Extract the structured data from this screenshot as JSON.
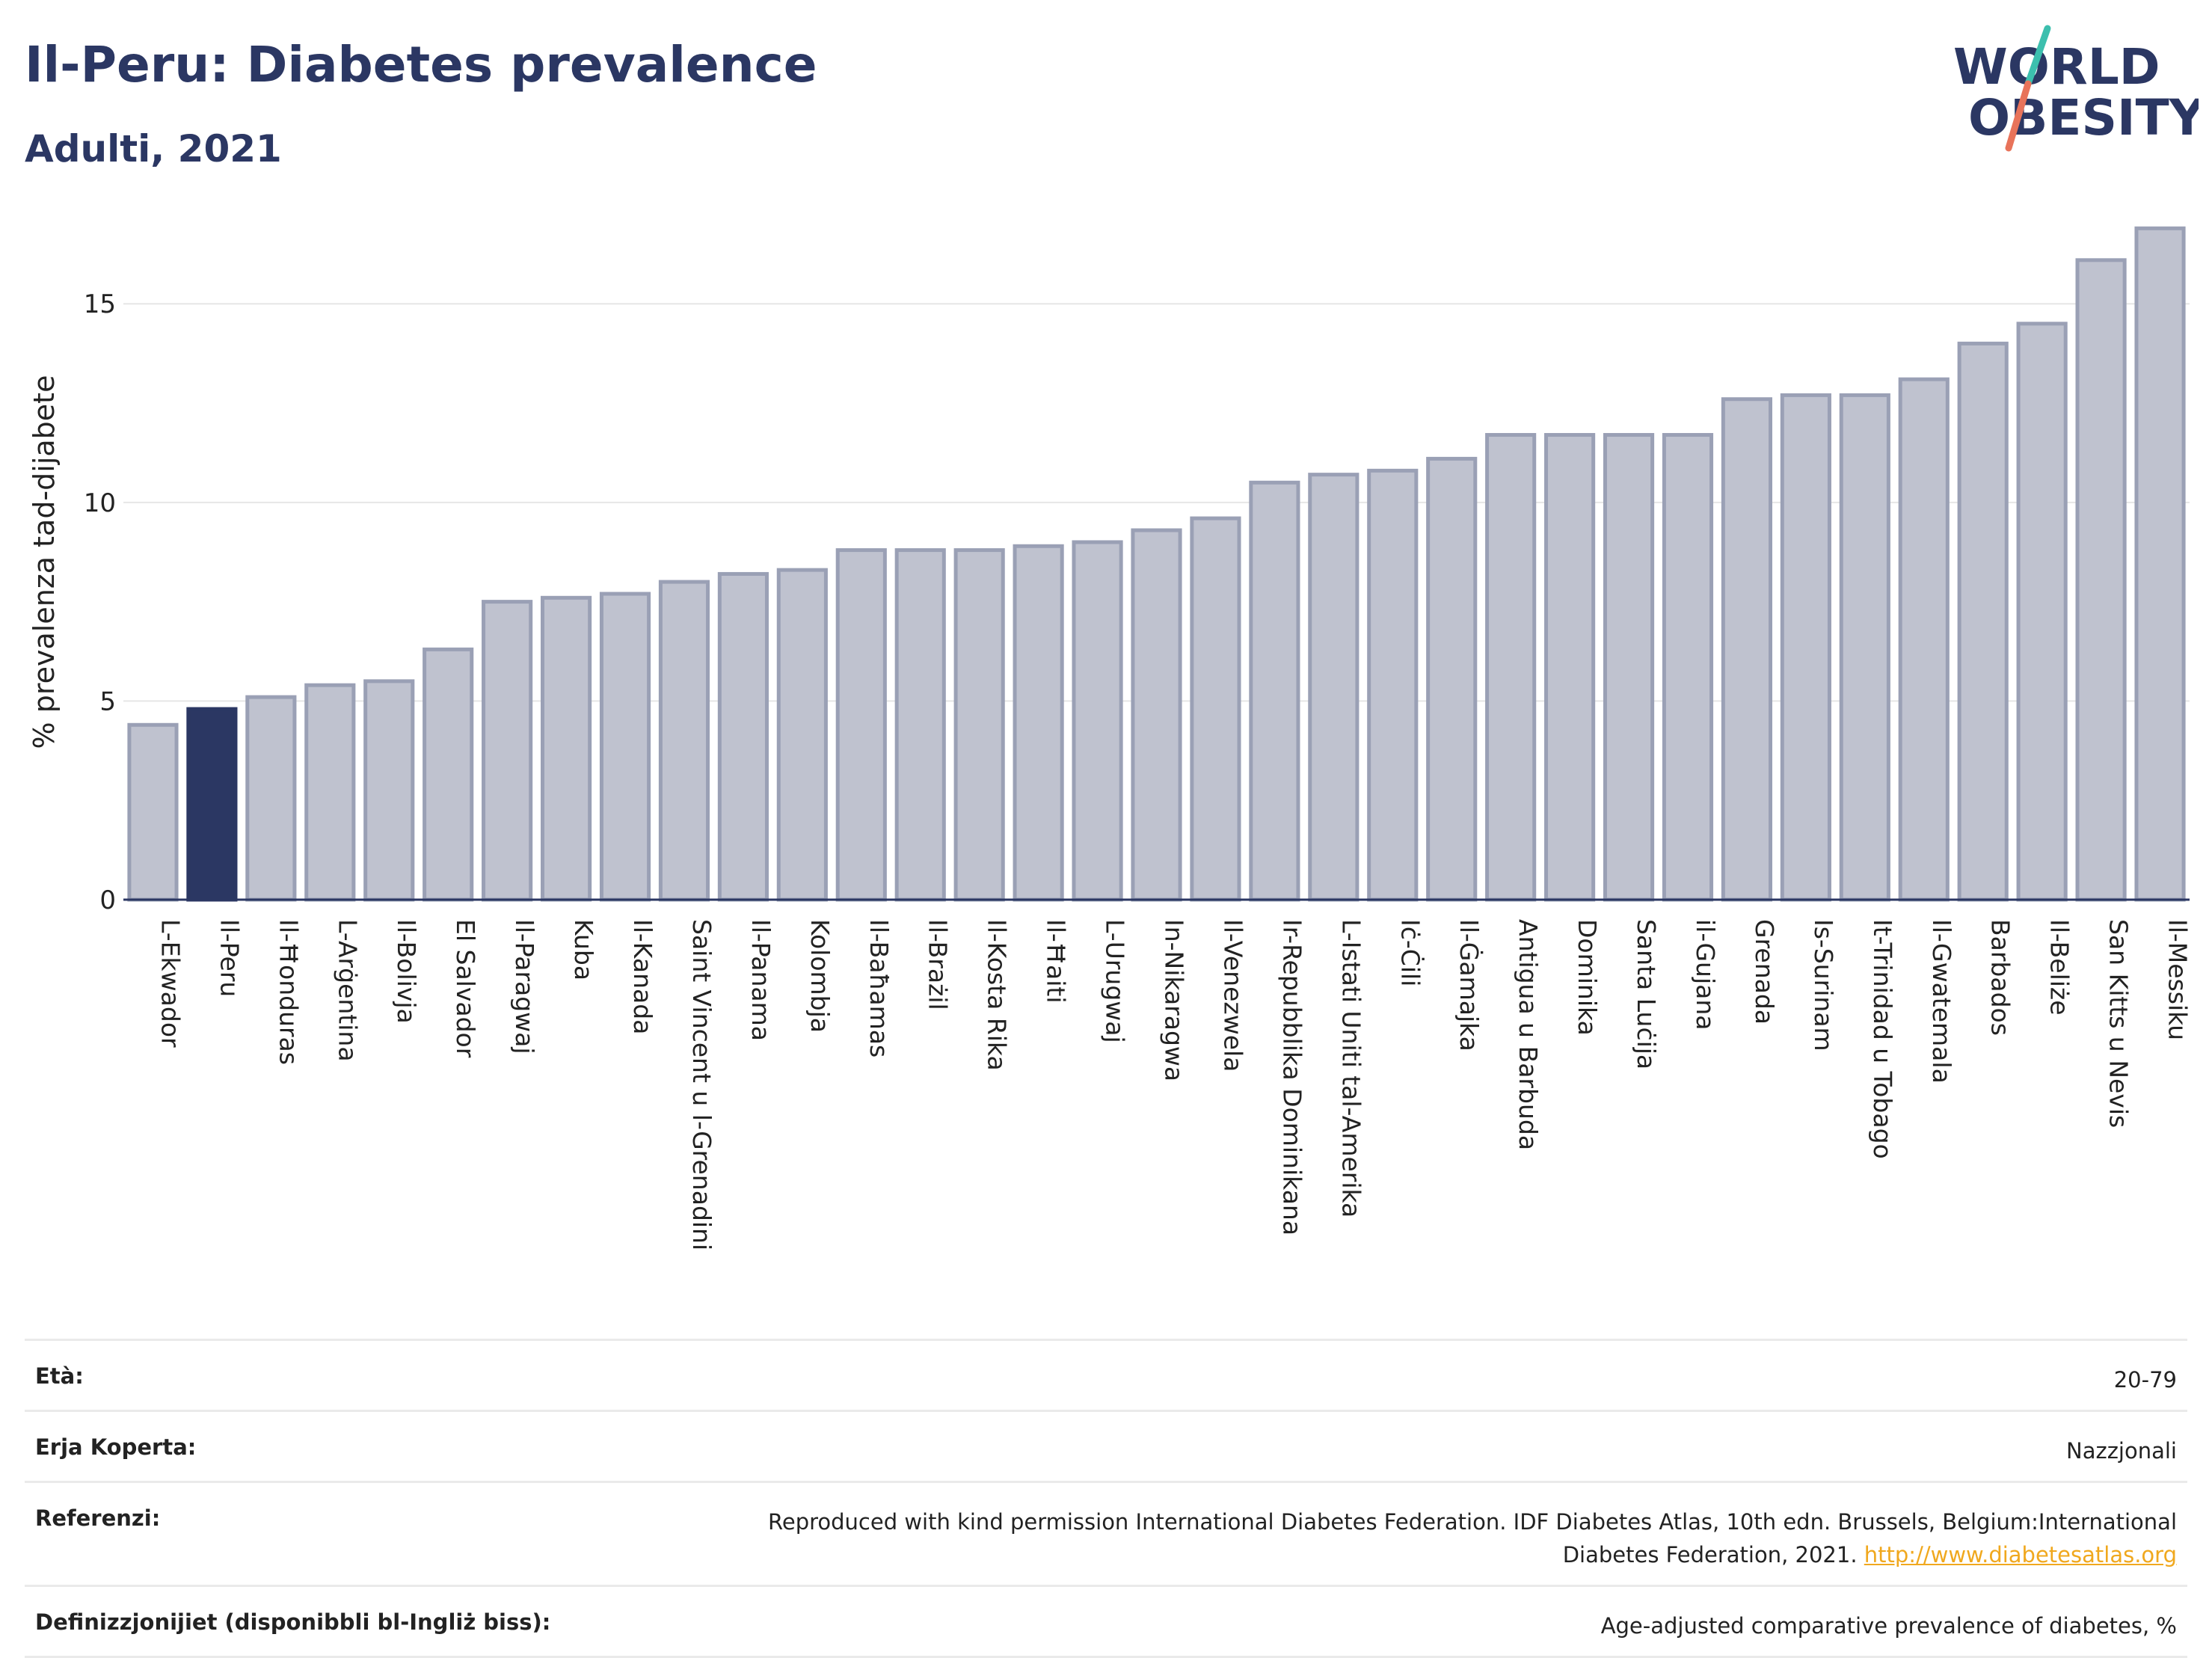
{
  "header": {
    "title": "Il-Peru: Diabetes prevalence",
    "subtitle": "Adulti, 2021"
  },
  "logo": {
    "line1": "WORLD",
    "line2": "OBESITY",
    "accent_colors": [
      "#3cbfae",
      "#e8735a"
    ]
  },
  "chart_data": {
    "type": "bar",
    "title": "Il-Peru: Diabetes prevalence",
    "subtitle": "Adulti, 2021",
    "ylabel": "% prevalenza tad-dijabete",
    "xlabel": "",
    "ylim": [
      0,
      17
    ],
    "yticks": [
      0,
      5,
      10,
      15
    ],
    "grid": true,
    "highlight": "Il-Peru",
    "colors": {
      "default": "#bfc2cf",
      "default_stroke": "#9aa0b5",
      "highlight": "#2b3763"
    },
    "categories": [
      "L-Ekwador",
      "Il-Peru",
      "Il-Ħonduras",
      "L-Arġentina",
      "Il-Bolivja",
      "El Salvador",
      "Il-Paragwaj",
      "Kuba",
      "Il-Kanada",
      "Saint Vincent u l-Grenadini",
      "Il-Panama",
      "Kolombja",
      "Il-Baħamas",
      "Il-Brażil",
      "Il-Kosta Rika",
      "Il-Ħaiti",
      "L-Urugwaj",
      "In-Nikaragwa",
      "Il-Venezwela",
      "Ir-Repubblika Dominikana",
      "L-Istati Uniti tal-Amerika",
      "Iċ-Ċili",
      "Il-Ġamajka",
      "Antigua u Barbuda",
      "Dominika",
      "Santa Luċija",
      "il-Gujana",
      "Grenada",
      "Is-Surinam",
      "It-Trinidad u Tobago",
      "Il-Gwatemala",
      "Barbados",
      "Il-Beliże",
      "San Kitts u Nevis",
      "Il-Messiku"
    ],
    "values": [
      4.4,
      4.8,
      5.1,
      5.4,
      5.5,
      6.3,
      7.5,
      7.6,
      7.7,
      8.0,
      8.2,
      8.3,
      8.8,
      8.8,
      8.8,
      8.9,
      9.0,
      9.3,
      9.6,
      10.5,
      10.7,
      10.8,
      11.1,
      11.7,
      11.7,
      11.7,
      11.7,
      12.6,
      12.7,
      12.7,
      13.1,
      14.0,
      14.5,
      16.1,
      16.9
    ]
  },
  "meta": [
    {
      "label": "Età:",
      "value": "20-79"
    },
    {
      "label": "Erja Koperta:",
      "value": "Nazzjonali"
    },
    {
      "label": "Referenzi:",
      "value": "Reproduced with kind permission International Diabetes Federation.  IDF Diabetes Atlas, 10th edn. Brussels, Belgium:International Diabetes Federation, 2021.",
      "link": "http://www.diabetesatlas.org"
    },
    {
      "label": "Definizzjonijiet (disponibbli bl-Ingliż biss):",
      "value": "Age-adjusted comparative prevalence of diabetes, %"
    }
  ]
}
